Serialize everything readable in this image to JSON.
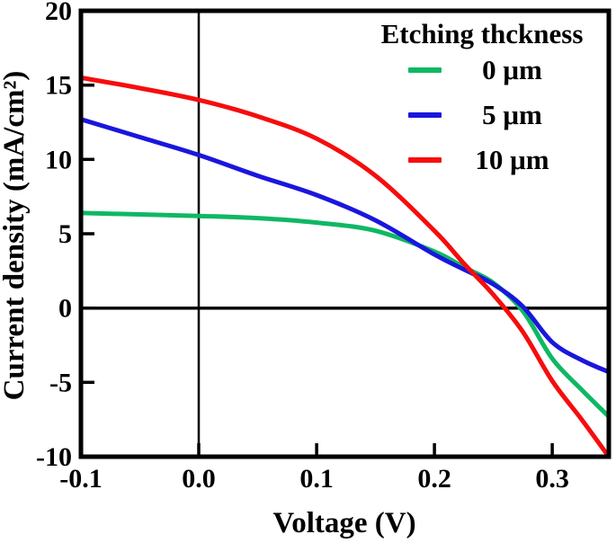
{
  "figure": {
    "background": "#ffffff",
    "xlabel": "Voltage (V)",
    "ylabel": "Current density (mA/cm²)"
  },
  "legend": {
    "title": "Etching thckness",
    "items": [
      {
        "label": "0 μm",
        "color": "#0eb864"
      },
      {
        "label": "5 μm",
        "color": "#1a16dd"
      },
      {
        "label": "10 μm",
        "color": "#f60d0d"
      }
    ]
  },
  "chart_data": {
    "type": "line",
    "title": "",
    "xlabel": "Voltage (V)",
    "ylabel": "Current density (mA/cm²)",
    "xlim": [
      -0.1,
      0.348
    ],
    "ylim": [
      -10,
      20
    ],
    "xticks": [
      -0.1,
      0.0,
      0.1,
      0.2,
      0.3
    ],
    "xtick_labels": [
      "-0.1",
      "0.0",
      "0.1",
      "0.2",
      "0.3"
    ],
    "yticks": [
      20,
      15,
      10,
      5,
      0,
      -5,
      -10
    ],
    "ytick_labels": [
      "20",
      "15",
      "10",
      "5",
      "0",
      "-5",
      "-10"
    ],
    "grid": false,
    "legend_position": "top-right",
    "legend_title": "Etching thckness",
    "reference_lines": {
      "vertical_at_x": 0.0,
      "horizontal_at_y": 0.0
    },
    "x": [
      -0.1,
      -0.05,
      0.0,
      0.05,
      0.1,
      0.15,
      0.2,
      0.225,
      0.25,
      0.275,
      0.3,
      0.325,
      0.348
    ],
    "series": [
      {
        "name": "0 μm",
        "color": "#0eb864",
        "values": [
          6.4,
          6.3,
          6.2,
          6.05,
          5.75,
          5.2,
          3.8,
          2.75,
          1.7,
          -0.2,
          -3.4,
          -5.5,
          -7.3
        ]
      },
      {
        "name": "5 μm",
        "color": "#1a16dd",
        "values": [
          12.7,
          11.5,
          10.3,
          8.9,
          7.6,
          5.9,
          3.6,
          2.6,
          1.6,
          0.1,
          -2.3,
          -3.5,
          -4.3
        ]
      },
      {
        "name": "10 μm",
        "color": "#f60d0d",
        "values": [
          15.5,
          14.8,
          14.0,
          12.9,
          11.4,
          8.9,
          5.2,
          3.0,
          0.9,
          -1.6,
          -4.9,
          -7.5,
          -10.0
        ]
      }
    ]
  }
}
